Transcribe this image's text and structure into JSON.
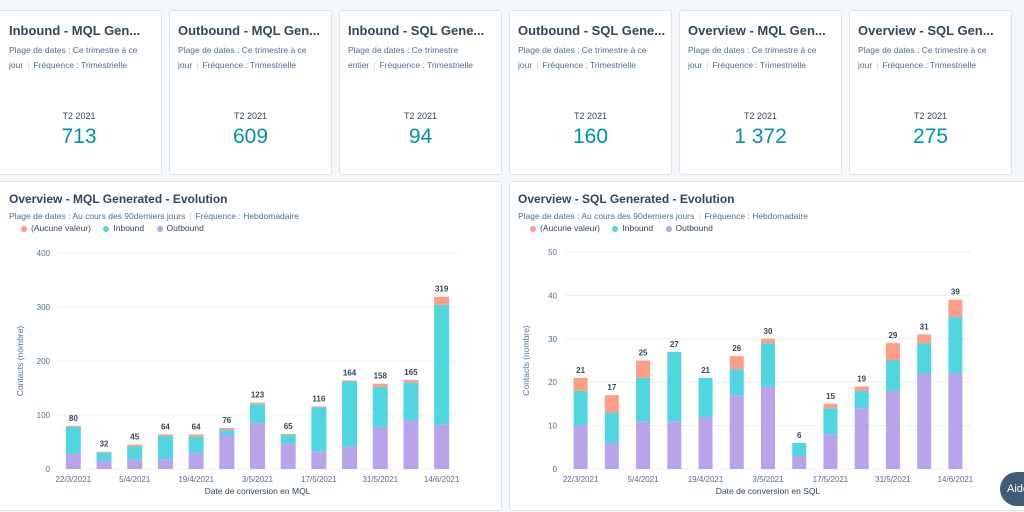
{
  "kpis": [
    {
      "title": "Inbound - MQL Gen...",
      "date_range": "Plage de dates : Ce trimestre à ce jour",
      "frequency": "Fréquence : Trimestrielle",
      "period": "T2 2021",
      "value": "713"
    },
    {
      "title": "Outbound - MQL Gen...",
      "date_range": "Plage de dates : Ce trimestre à ce jour",
      "frequency": "Fréquence : Trimestrielle",
      "period": "T2 2021",
      "value": "609"
    },
    {
      "title": "Inbound - SQL Gene...",
      "date_range": "Plage de dates : Ce trimestre entier",
      "frequency": "Fréquence : Trimestrielle",
      "period": "T2 2021",
      "value": "94"
    },
    {
      "title": "Outbound - SQL Gene...",
      "date_range": "Plage de dates : Ce trimestre à ce jour",
      "frequency": "Fréquence : Trimestrielle",
      "period": "T2 2021",
      "value": "160"
    },
    {
      "title": "Overview - MQL Gen...",
      "date_range": "Plage de dates : Ce trimestre à ce jour",
      "frequency": "Fréquence : Trimestrielle",
      "period": "T2 2021",
      "value": "1 372"
    },
    {
      "title": "Overview - SQL Gen...",
      "date_range": "Plage de dates : Ce trimestre à ce jour",
      "frequency": "Fréquence : Trimestrielle",
      "period": "T2 2021",
      "value": "275"
    }
  ],
  "charts": [
    {
      "title": "Overview - MQL Generated - Evolution",
      "date_range": "Plage de dates : Au cours des 90derniers jours",
      "frequency": "Fréquence : Hebdomadaire",
      "legend": [
        "(Aucune valeur)",
        "Inbound",
        "Outbound"
      ]
    },
    {
      "title": "Overview - SQL Generated - Evolution",
      "date_range": "Plage de dates : Au cours des 90derniers jours",
      "frequency": "Fréquence : Hebdomadaire",
      "legend": [
        "(Aucune valeur)",
        "Inbound",
        "Outbound"
      ]
    }
  ],
  "colors": {
    "none": "#ff9e86",
    "inbound": "#4fd6df",
    "outbound": "#b9a3ea",
    "accent": "#0091ae"
  },
  "help_button": "Aide",
  "chart_data": [
    {
      "type": "bar",
      "stacked": true,
      "title": "Overview - MQL Generated - Evolution",
      "xlabel": "Date de conversion en MQL",
      "ylabel": "Contacts (nombre)",
      "ylim": [
        0,
        400
      ],
      "yticks": [
        0,
        100,
        200,
        300,
        400
      ],
      "x_tick_labels": [
        "22/3/2021",
        "5/4/2021",
        "19/4/2021",
        "3/5/2021",
        "17/5/2021",
        "31/5/2021",
        "14/6/2021"
      ],
      "totals": [
        80,
        32,
        45,
        64,
        64,
        76,
        123,
        65,
        116,
        164,
        158,
        165,
        319
      ],
      "series": [
        {
          "name": "Outbound",
          "values": [
            28,
            15,
            17,
            18,
            30,
            62,
            85,
            47,
            33,
            42,
            78,
            90,
            82
          ]
        },
        {
          "name": "Inbound",
          "values": [
            50,
            15,
            25,
            43,
            30,
            10,
            35,
            16,
            81,
            120,
            74,
            70,
            222
          ]
        },
        {
          "name": "(Aucune valeur)",
          "values": [
            2,
            2,
            3,
            3,
            4,
            4,
            3,
            2,
            2,
            2,
            6,
            5,
            15
          ]
        }
      ]
    },
    {
      "type": "bar",
      "stacked": true,
      "title": "Overview - SQL Generated - Evolution",
      "xlabel": "Date de conversion en SQL",
      "ylabel": "Contacts (nombre)",
      "ylim": [
        0,
        50
      ],
      "yticks": [
        0,
        10,
        20,
        30,
        40,
        50
      ],
      "x_tick_labels": [
        "22/3/2021",
        "5/4/2021",
        "19/4/2021",
        "3/5/2021",
        "17/5/2021",
        "31/5/2021",
        "14/6/2021"
      ],
      "totals": [
        21,
        17,
        25,
        27,
        21,
        26,
        30,
        6,
        15,
        19,
        29,
        31,
        39
      ],
      "series": [
        {
          "name": "Outbound",
          "values": [
            10,
            6,
            11,
            11,
            12,
            17,
            19,
            3,
            8,
            14,
            18,
            22,
            22
          ]
        },
        {
          "name": "Inbound",
          "values": [
            8,
            7,
            10,
            16,
            9,
            6,
            10,
            3,
            6,
            4,
            7,
            7,
            13
          ]
        },
        {
          "name": "(Aucune valeur)",
          "values": [
            3,
            4,
            4,
            0,
            0,
            3,
            1,
            0,
            1,
            1,
            4,
            2,
            4
          ]
        }
      ]
    }
  ]
}
